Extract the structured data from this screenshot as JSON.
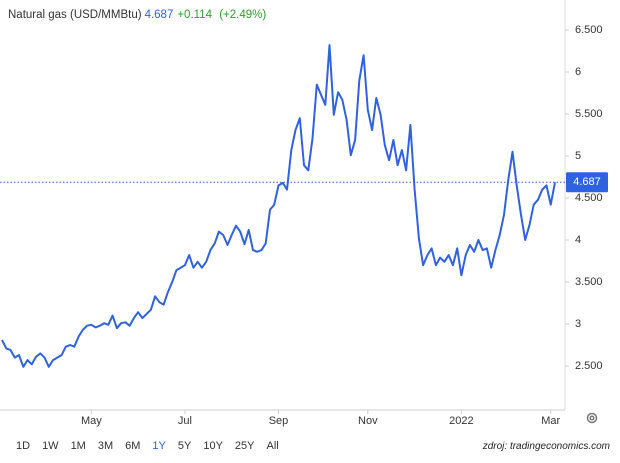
{
  "header": {
    "title": "Natural gas (USD/MMBtu)",
    "price": 4.687,
    "change": "+0.114",
    "change_pct": "(+2.49%)"
  },
  "chart_data": {
    "type": "line",
    "color": "#2f62e0",
    "categories": [
      null,
      null,
      null,
      null,
      null,
      null,
      null,
      null,
      null,
      null,
      null,
      null,
      null,
      null,
      null,
      null,
      null,
      null,
      null,
      null,
      null,
      "May",
      null,
      null,
      null,
      null,
      null,
      null,
      null,
      null,
      null,
      null,
      null,
      null,
      null,
      null,
      null,
      null,
      null,
      null,
      null,
      null,
      null,
      "Jul",
      null,
      null,
      null,
      null,
      null,
      null,
      null,
      null,
      null,
      null,
      null,
      null,
      null,
      null,
      null,
      null,
      null,
      null,
      null,
      null,
      null,
      "Sep",
      null,
      null,
      null,
      null,
      null,
      null,
      null,
      null,
      null,
      null,
      null,
      null,
      null,
      null,
      null,
      null,
      null,
      null,
      null,
      null,
      "Nov",
      null,
      null,
      null,
      null,
      null,
      null,
      null,
      null,
      null,
      null,
      null,
      null,
      null,
      null,
      null,
      null,
      null,
      null,
      null,
      null,
      null,
      "2022",
      null,
      null,
      null,
      null,
      null,
      null,
      null,
      null,
      null,
      null,
      null,
      null,
      null,
      null,
      null,
      null,
      null,
      null,
      null,
      null,
      "Mar",
      null
    ],
    "values": [
      2.81,
      2.71,
      2.69,
      2.6,
      2.63,
      2.49,
      2.57,
      2.52,
      2.61,
      2.65,
      2.6,
      2.49,
      2.57,
      2.6,
      2.63,
      2.73,
      2.75,
      2.73,
      2.85,
      2.93,
      2.98,
      2.99,
      2.96,
      2.98,
      3.01,
      2.99,
      3.1,
      2.95,
      3.01,
      3.02,
      2.98,
      3.07,
      3.14,
      3.07,
      3.12,
      3.17,
      3.33,
      3.26,
      3.23,
      3.38,
      3.5,
      3.64,
      3.67,
      3.7,
      3.82,
      3.67,
      3.74,
      3.67,
      3.74,
      3.88,
      3.96,
      4.1,
      4.06,
      3.94,
      4.06,
      4.17,
      4.1,
      3.95,
      4.12,
      3.88,
      3.86,
      3.88,
      3.96,
      4.36,
      4.42,
      4.65,
      4.68,
      4.6,
      5.07,
      5.31,
      5.45,
      4.89,
      4.83,
      5.21,
      5.85,
      5.73,
      5.61,
      6.32,
      5.49,
      5.76,
      5.67,
      5.43,
      5.01,
      5.19,
      5.9,
      6.2,
      5.55,
      5.31,
      5.69,
      5.49,
      5.13,
      4.95,
      5.19,
      4.89,
      5.07,
      4.83,
      5.37,
      4.6,
      4.02,
      3.7,
      3.82,
      3.9,
      3.7,
      3.79,
      3.74,
      3.82,
      3.7,
      3.9,
      3.58,
      3.82,
      3.94,
      3.86,
      4.0,
      3.88,
      3.9,
      3.67,
      3.88,
      4.06,
      4.3,
      4.71,
      5.05,
      4.65,
      4.3,
      4.0,
      4.18,
      4.42,
      4.48,
      4.6,
      4.65,
      4.42,
      4.687
    ],
    "ylim": [
      2,
      6.85
    ],
    "yticks": [
      {
        "value": 2.5,
        "label": "2.500"
      },
      3,
      {
        "value": 3.5,
        "label": "3.500"
      },
      4,
      {
        "value": 4.5,
        "label": "4.500"
      },
      5,
      {
        "value": 5.5,
        "label": "5.500"
      },
      6,
      {
        "value": 6.5,
        "label": "6.500"
      }
    ]
  },
  "range_buttons": [
    "1D",
    "1W",
    "1M",
    "3M",
    "6M",
    "1Y",
    "5Y",
    "10Y",
    "25Y",
    "All"
  ],
  "selected_range": "1Y",
  "source": "zdroj: tradingeconomics.com"
}
